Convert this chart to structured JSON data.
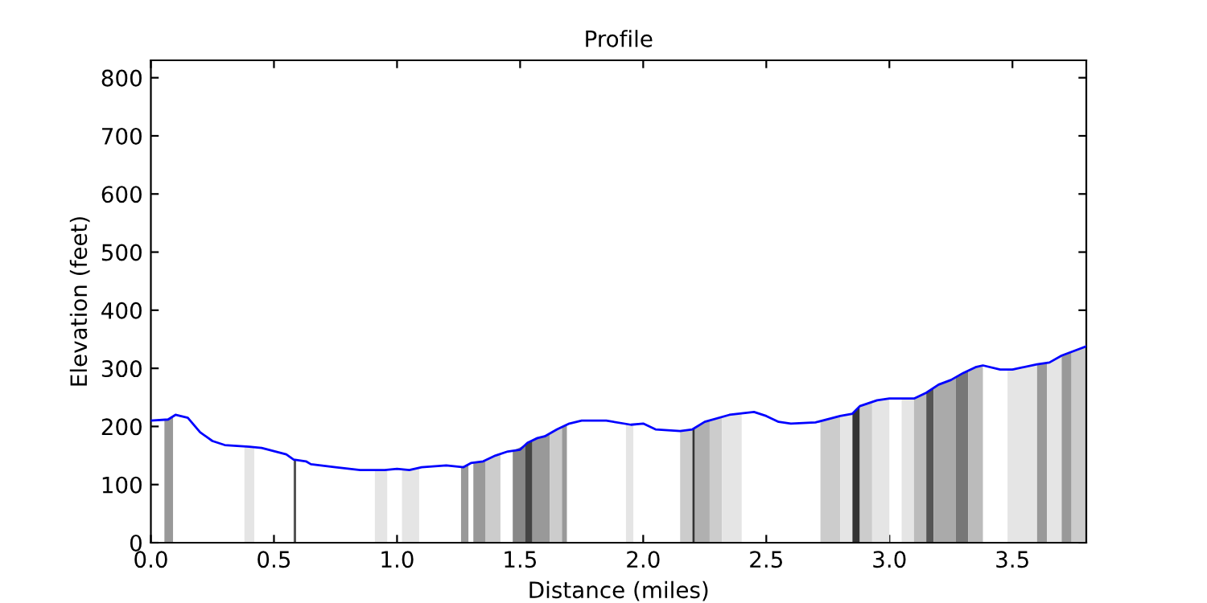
{
  "chart_data": {
    "type": "line",
    "title": "Profile",
    "xlabel": "Distance (miles)",
    "ylabel": "Elevation (feet)",
    "xlim": [
      0,
      3.8
    ],
    "ylim": [
      0,
      830
    ],
    "xticks": [
      {
        "value": 0,
        "label": "0.0"
      },
      0.5,
      {
        "value": 1,
        "label": "1.0"
      },
      1.5,
      {
        "value": 2,
        "label": "2.0"
      },
      2.5,
      {
        "value": 3,
        "label": "3.0"
      },
      3.5
    ],
    "yticks": [
      0,
      100,
      200,
      300,
      400,
      500,
      600,
      700,
      800
    ],
    "grid": false,
    "legend": false,
    "marker": "none",
    "line_style": "solid",
    "series": [
      {
        "color": "#0000ff",
        "x": [
          0.0,
          0.07,
          0.1,
          0.15,
          0.2,
          0.25,
          0.3,
          0.4,
          0.45,
          0.55,
          0.58,
          0.63,
          0.65,
          0.75,
          0.85,
          0.95,
          1.0,
          1.05,
          1.1,
          1.2,
          1.27,
          1.3,
          1.35,
          1.4,
          1.45,
          1.5,
          1.53,
          1.57,
          1.6,
          1.65,
          1.7,
          1.75,
          1.85,
          1.95,
          2.0,
          2.05,
          2.15,
          2.2,
          2.25,
          2.35,
          2.45,
          2.5,
          2.55,
          2.6,
          2.7,
          2.8,
          2.85,
          2.88,
          2.95,
          3.0,
          3.1,
          3.15,
          3.2,
          3.25,
          3.3,
          3.35,
          3.38,
          3.45,
          3.5,
          3.6,
          3.65,
          3.7,
          3.75,
          3.8
        ],
        "values": [
          210,
          212,
          220,
          215,
          190,
          175,
          168,
          165,
          163,
          152,
          143,
          140,
          135,
          130,
          125,
          125,
          127,
          125,
          130,
          133,
          130,
          137,
          140,
          150,
          157,
          160,
          172,
          180,
          183,
          195,
          205,
          210,
          210,
          203,
          205,
          195,
          192,
          195,
          208,
          220,
          225,
          218,
          208,
          205,
          207,
          218,
          222,
          235,
          245,
          248,
          248,
          258,
          272,
          280,
          292,
          302,
          305,
          298,
          298,
          307,
          310,
          322,
          330,
          338
        ]
      },
      {
        "type": "area",
        "color": "#999999",
        "x": [
          0.055,
          0.09
        ],
        "values": [
          211,
          215
        ]
      },
      {
        "type": "area",
        "color": "#e5e5e5",
        "x": [
          0.38,
          0.42
        ],
        "values": [
          165,
          165
        ]
      },
      {
        "type": "area",
        "color": "#555555",
        "x": [
          0.58,
          0.59
        ],
        "values": [
          143,
          143
        ]
      },
      {
        "type": "area",
        "color": "#e5e5e5",
        "x": [
          0.91,
          0.96
        ],
        "values": [
          125,
          125
        ]
      },
      {
        "type": "area",
        "color": "#e5e5e5",
        "x": [
          1.02,
          1.09
        ],
        "values": [
          126,
          129
        ]
      },
      {
        "type": "area",
        "color": "#999999",
        "x": [
          1.26,
          1.29
        ],
        "values": [
          131,
          134
        ]
      },
      {
        "type": "area",
        "color": "#999999",
        "x": [
          1.31,
          1.36
        ],
        "values": [
          138,
          141
        ]
      },
      {
        "type": "area",
        "color": "#cccccc",
        "x": [
          1.36,
          1.42
        ],
        "values": [
          141,
          152
        ]
      },
      {
        "type": "area",
        "color": "#888888",
        "x": [
          1.47,
          1.52
        ],
        "values": [
          158,
          168
        ]
      },
      {
        "type": "area",
        "color": "#444444",
        "x": [
          1.52,
          1.55
        ],
        "values": [
          168,
          176
        ]
      },
      {
        "type": "area",
        "color": "#999999",
        "x": [
          1.55,
          1.62
        ],
        "values": [
          176,
          187
        ]
      },
      {
        "type": "area",
        "color": "#cccccc",
        "x": [
          1.62,
          1.67
        ],
        "values": [
          187,
          199
        ]
      },
      {
        "type": "area",
        "color": "#999999",
        "x": [
          1.67,
          1.69
        ],
        "values": [
          199,
          203
        ]
      },
      {
        "type": "area",
        "color": "#e5e5e5",
        "x": [
          1.93,
          1.96
        ],
        "values": [
          204,
          203
        ]
      },
      {
        "type": "area",
        "color": "#cccccc",
        "x": [
          2.15,
          2.2
        ],
        "values": [
          192,
          195
        ]
      },
      {
        "type": "area",
        "color": "#333333",
        "x": [
          2.2,
          2.21
        ],
        "values": [
          195,
          198
        ]
      },
      {
        "type": "area",
        "color": "#b0b0b0",
        "x": [
          2.21,
          2.27
        ],
        "values": [
          198,
          211
        ]
      },
      {
        "type": "area",
        "color": "#cccccc",
        "x": [
          2.27,
          2.32
        ],
        "values": [
          211,
          217
        ]
      },
      {
        "type": "area",
        "color": "#e5e5e5",
        "x": [
          2.32,
          2.4
        ],
        "values": [
          217,
          222
        ]
      },
      {
        "type": "area",
        "color": "#cccccc",
        "x": [
          2.72,
          2.8
        ],
        "values": [
          208,
          218
        ]
      },
      {
        "type": "area",
        "color": "#e5e5e5",
        "x": [
          2.8,
          2.85
        ],
        "values": [
          218,
          222
        ]
      },
      {
        "type": "area",
        "color": "#333333",
        "x": [
          2.85,
          2.88
        ],
        "values": [
          222,
          235
        ]
      },
      {
        "type": "area",
        "color": "#cccccc",
        "x": [
          2.88,
          2.93
        ],
        "values": [
          235,
          242
        ]
      },
      {
        "type": "area",
        "color": "#e5e5e5",
        "x": [
          2.93,
          3.0
        ],
        "values": [
          242,
          248
        ]
      },
      {
        "type": "area",
        "color": "#e5e5e5",
        "x": [
          3.05,
          3.1
        ],
        "values": [
          248,
          248
        ]
      },
      {
        "type": "area",
        "color": "#bbbbbb",
        "x": [
          3.1,
          3.15
        ],
        "values": [
          248,
          258
        ]
      },
      {
        "type": "area",
        "color": "#555555",
        "x": [
          3.15,
          3.18
        ],
        "values": [
          258,
          267
        ]
      },
      {
        "type": "area",
        "color": "#aaaaaa",
        "x": [
          3.18,
          3.27
        ],
        "values": [
          267,
          285
        ]
      },
      {
        "type": "area",
        "color": "#777777",
        "x": [
          3.27,
          3.32
        ],
        "values": [
          285,
          297
        ]
      },
      {
        "type": "area",
        "color": "#bbbbbb",
        "x": [
          3.32,
          3.38
        ],
        "values": [
          297,
          305
        ]
      },
      {
        "type": "area",
        "color": "#e5e5e5",
        "x": [
          3.48,
          3.6
        ],
        "values": [
          298,
          307
        ]
      },
      {
        "type": "area",
        "color": "#999999",
        "x": [
          3.6,
          3.64
        ],
        "values": [
          307,
          309
        ]
      },
      {
        "type": "area",
        "color": "#e5e5e5",
        "x": [
          3.64,
          3.7
        ],
        "values": [
          309,
          322
        ]
      },
      {
        "type": "area",
        "color": "#999999",
        "x": [
          3.7,
          3.74
        ],
        "values": [
          322,
          328
        ]
      },
      {
        "type": "area",
        "color": "#cccccc",
        "x": [
          3.74,
          3.8
        ],
        "values": [
          328,
          338
        ]
      }
    ]
  }
}
